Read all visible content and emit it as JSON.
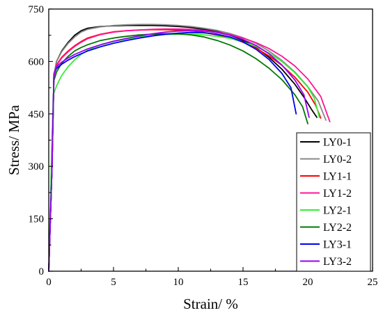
{
  "chart_data": {
    "type": "line",
    "title": "",
    "xlabel": "Strain/ %",
    "ylabel": "Stress/ MPa",
    "xlim": [
      0,
      25
    ],
    "ylim": [
      0,
      750
    ],
    "xticks": [
      0,
      5,
      10,
      15,
      20,
      25
    ],
    "yticks": [
      0,
      150,
      300,
      450,
      600,
      750
    ],
    "grid": false,
    "legend_position": "bottom-right",
    "series": [
      {
        "name": "LY0-1",
        "color": "#000000",
        "x": [
          0,
          0.25,
          0.4,
          0.6,
          1.0,
          1.5,
          2.0,
          2.5,
          3.0,
          4.0,
          5.0,
          6.0,
          7.0,
          8.0,
          9.0,
          10.0,
          11.0,
          12.0,
          13.0,
          14.0,
          15.0,
          16.0,
          17.0,
          18.0,
          19.0,
          19.7,
          20.3,
          20.7
        ],
        "y": [
          0,
          300,
          560,
          600,
          630,
          655,
          675,
          688,
          695,
          700,
          702,
          703,
          703,
          703,
          702,
          700,
          697,
          692,
          686,
          675,
          660,
          640,
          612,
          578,
          535,
          498,
          462,
          440
        ]
      },
      {
        "name": "LY0-2",
        "color": "#888888",
        "x": [
          0,
          0.25,
          0.4,
          0.6,
          1.0,
          1.5,
          2.0,
          2.5,
          3.0,
          4.0,
          5.0,
          6.0,
          7.0,
          8.0,
          9.0,
          10.0,
          11.0,
          12.0,
          13.0,
          14.0,
          15.0,
          16.0,
          17.0,
          18.0,
          19.0,
          20.0,
          20.8,
          21.4
        ],
        "y": [
          0,
          300,
          560,
          600,
          628,
          652,
          670,
          684,
          692,
          699,
          703,
          705,
          706,
          706,
          705,
          703,
          700,
          695,
          689,
          680,
          668,
          652,
          630,
          603,
          570,
          528,
          487,
          432
        ]
      },
      {
        "name": "LY1-1",
        "color": "#ff0000",
        "x": [
          0,
          0.25,
          0.4,
          0.6,
          1.0,
          1.5,
          2.0,
          2.5,
          3.0,
          4.0,
          5.0,
          6.0,
          7.0,
          8.0,
          9.0,
          10.0,
          11.0,
          12.0,
          13.0,
          14.0,
          15.0,
          16.0,
          17.0,
          18.0,
          19.0,
          20.0,
          20.6,
          21.0
        ],
        "y": [
          0,
          300,
          555,
          590,
          612,
          630,
          645,
          657,
          667,
          678,
          685,
          688,
          690,
          691,
          691,
          690,
          688,
          683,
          676,
          667,
          655,
          638,
          616,
          589,
          555,
          512,
          475,
          438
        ]
      },
      {
        "name": "LY1-2",
        "color": "#ff1493",
        "x": [
          0,
          0.25,
          0.4,
          0.6,
          1.0,
          1.5,
          2.0,
          2.5,
          3.0,
          4.0,
          5.0,
          6.0,
          7.0,
          8.0,
          9.0,
          10.0,
          11.0,
          12.0,
          13.0,
          14.0,
          15.0,
          16.0,
          17.0,
          18.0,
          19.0,
          20.0,
          21.0,
          21.7
        ],
        "y": [
          0,
          300,
          555,
          588,
          610,
          628,
          643,
          655,
          665,
          677,
          684,
          688,
          690,
          692,
          693,
          693,
          692,
          689,
          684,
          677,
          667,
          654,
          637,
          615,
          587,
          550,
          500,
          428
        ]
      },
      {
        "name": "LY2-1",
        "color": "#33ee33",
        "x": [
          0,
          0.2,
          0.35,
          0.6,
          1.0,
          1.5,
          2.0,
          2.5,
          3.0,
          4.0,
          5.0,
          6.0,
          7.0,
          8.0,
          9.0,
          10.0,
          11.0,
          12.0,
          13.0,
          14.0,
          15.0,
          16.0,
          17.0,
          18.0,
          19.0,
          20.0,
          20.5,
          20.9
        ],
        "y": [
          0,
          300,
          505,
          530,
          560,
          585,
          605,
          620,
          632,
          647,
          657,
          664,
          670,
          674,
          677,
          678,
          678,
          676,
          672,
          666,
          656,
          643,
          624,
          600,
          568,
          527,
          495,
          440
        ]
      },
      {
        "name": "LY2-2",
        "color": "#007700",
        "x": [
          0,
          0.25,
          0.4,
          0.6,
          1.0,
          1.5,
          2.0,
          2.5,
          3.0,
          4.0,
          5.0,
          6.0,
          7.0,
          8.0,
          9.0,
          10.0,
          11.0,
          12.0,
          13.0,
          14.0,
          15.0,
          16.0,
          17.0,
          18.0,
          19.0,
          19.6,
          20.0
        ],
        "y": [
          0,
          300,
          545,
          570,
          595,
          615,
          630,
          640,
          648,
          660,
          667,
          672,
          676,
          678,
          679,
          679,
          676,
          670,
          660,
          647,
          630,
          608,
          581,
          548,
          505,
          470,
          422
        ]
      },
      {
        "name": "LY3-1",
        "color": "#0000ee",
        "x": [
          0,
          0.25,
          0.4,
          0.6,
          1.0,
          1.5,
          2.0,
          2.5,
          3.0,
          4.0,
          5.0,
          6.0,
          7.0,
          8.0,
          9.0,
          10.0,
          11.0,
          12.0,
          13.0,
          14.0,
          15.0,
          16.0,
          17.0,
          18.0,
          18.7,
          19.1
        ],
        "y": [
          0,
          300,
          565,
          580,
          592,
          604,
          614,
          622,
          630,
          642,
          652,
          660,
          667,
          673,
          678,
          681,
          683,
          682,
          678,
          670,
          656,
          635,
          606,
          566,
          525,
          450
        ]
      },
      {
        "name": "LY3-2",
        "color": "#9900ee",
        "x": [
          0,
          0.25,
          0.4,
          0.6,
          1.0,
          1.5,
          2.0,
          2.5,
          3.0,
          4.0,
          5.0,
          6.0,
          7.0,
          8.0,
          9.0,
          10.0,
          11.0,
          12.0,
          13.0,
          14.0,
          15.0,
          16.0,
          17.0,
          18.0,
          19.0,
          19.7,
          20.1
        ],
        "y": [
          0,
          300,
          565,
          585,
          598,
          610,
          620,
          628,
          636,
          648,
          658,
          666,
          673,
          679,
          684,
          687,
          688,
          687,
          683,
          675,
          663,
          646,
          622,
          590,
          547,
          505,
          440
        ]
      }
    ]
  }
}
